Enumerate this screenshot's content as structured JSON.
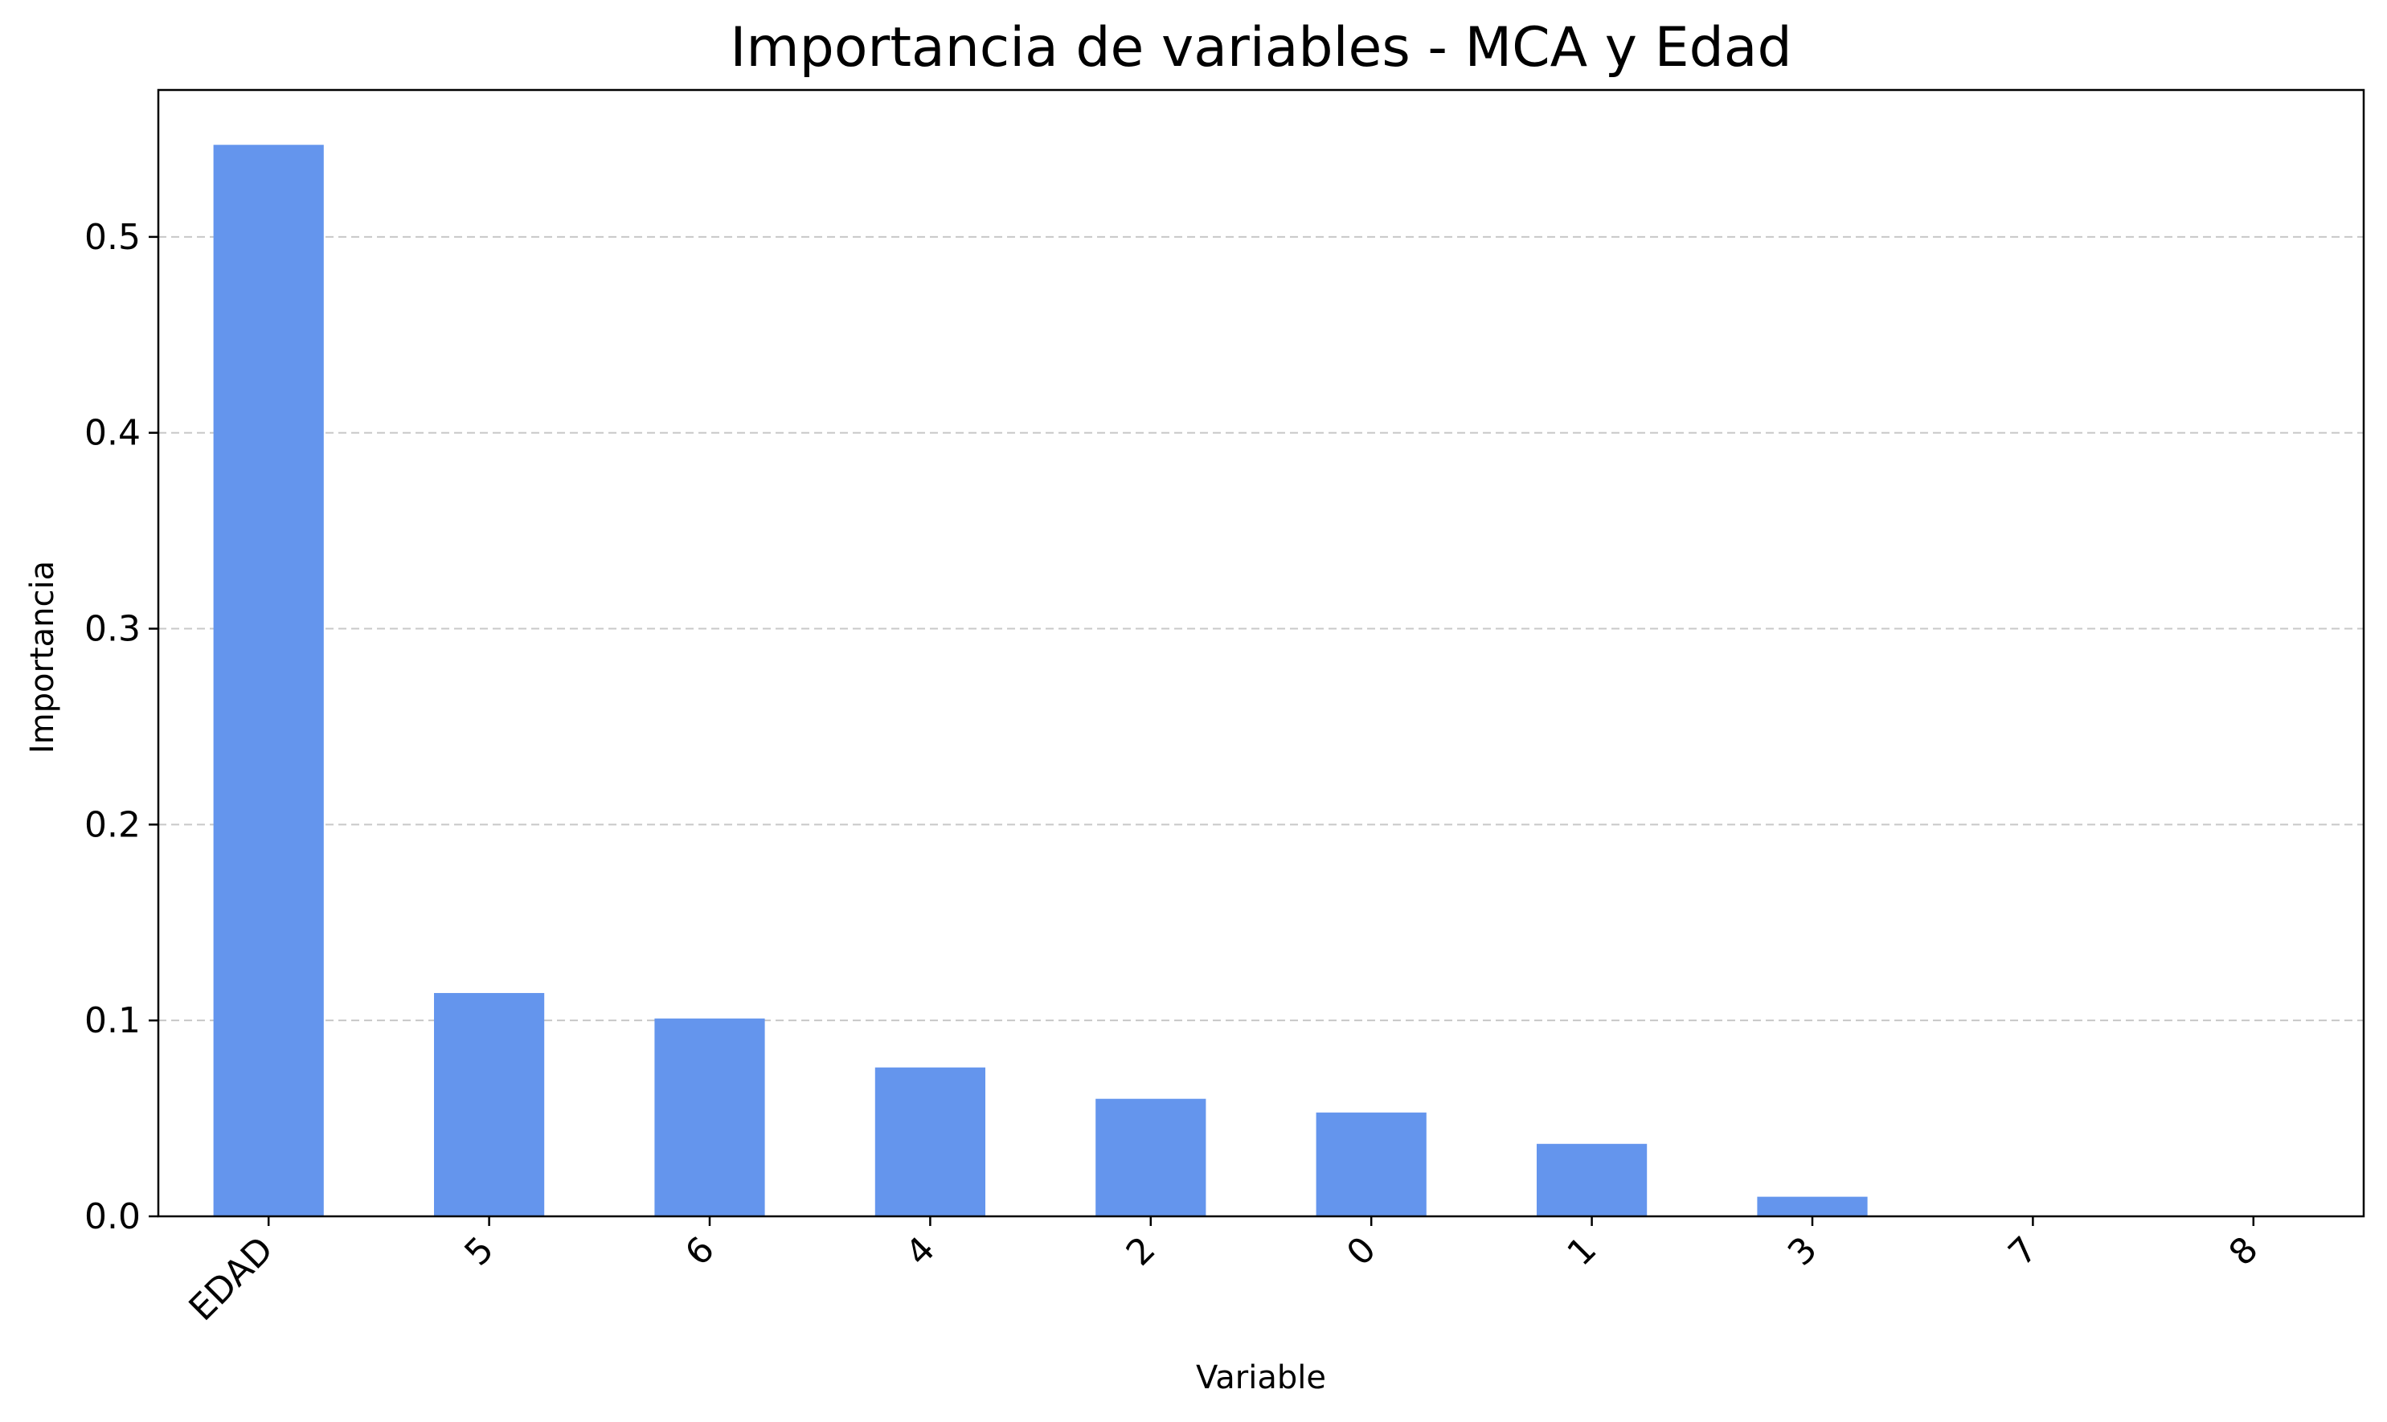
{
  "chart_data": {
    "type": "bar",
    "title": "Importancia de variables - MCA y Edad",
    "xlabel": "Variable",
    "ylabel": "Importancia",
    "categories": [
      "EDAD",
      "5",
      "6",
      "4",
      "2",
      "0",
      "1",
      "3",
      "7",
      "8"
    ],
    "values": [
      0.547,
      0.114,
      0.101,
      0.076,
      0.06,
      0.053,
      0.037,
      0.01,
      0.0,
      0.0
    ],
    "ylim": [
      0,
      0.575
    ],
    "yticks": [
      0.0,
      0.1,
      0.2,
      0.3,
      0.4,
      0.5
    ],
    "ytick_labels": [
      "0.0",
      "0.1",
      "0.2",
      "0.3",
      "0.4",
      "0.5"
    ],
    "grid": "y-axis dashed",
    "legend": "none",
    "bar_color": "#6495ED",
    "x_tick_rotation": "45 degrees"
  }
}
